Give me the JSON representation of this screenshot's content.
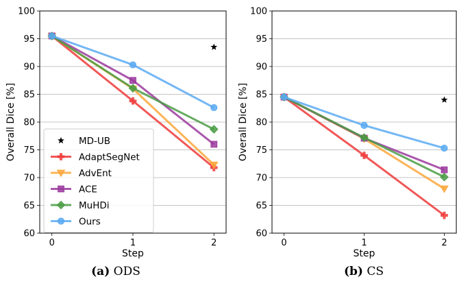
{
  "colors": {
    "AdaptSegNet": "#ee3a3a",
    "AdvEnt": "#fca73b",
    "ACE": "#9b3a9e",
    "MuHDi": "#4a9c44",
    "Ours": "#5aaaf2",
    "MD-UB": "#000000"
  },
  "chart_data": [
    {
      "type": "line",
      "caption_tag": "(a)",
      "caption_text": "ODS",
      "xlabel": "Step",
      "ylabel": "Overall Dice [%]",
      "x": [
        0,
        1,
        2
      ],
      "xticks": [
        "0",
        "1",
        "2"
      ],
      "ylim": [
        60,
        100
      ],
      "yticks": [
        "60",
        "65",
        "70",
        "75",
        "80",
        "85",
        "90",
        "95",
        "100"
      ],
      "grid": "horizontal",
      "legend": "bottom-left",
      "upper_bound": {
        "name": "MD-UB",
        "x": 2,
        "y": 93.5
      },
      "series": [
        {
          "name": "AdaptSegNet",
          "marker": "plus",
          "values": [
            95.5,
            83.8,
            71.8
          ]
        },
        {
          "name": "AdvEnt",
          "marker": "triangle-down",
          "values": [
            95.5,
            86.0,
            72.3
          ]
        },
        {
          "name": "ACE",
          "marker": "square",
          "values": [
            95.5,
            87.5,
            76.0
          ]
        },
        {
          "name": "MuHDi",
          "marker": "diamond",
          "values": [
            95.5,
            86.1,
            78.7
          ]
        },
        {
          "name": "Ours",
          "marker": "circle",
          "values": [
            95.5,
            90.3,
            82.6
          ]
        }
      ]
    },
    {
      "type": "line",
      "caption_tag": "(b)",
      "caption_text": "CS",
      "xlabel": "Step",
      "ylabel": "Overall Dice [%]",
      "x": [
        0,
        1,
        2
      ],
      "xticks": [
        "0",
        "1",
        "2"
      ],
      "ylim": [
        60,
        100
      ],
      "yticks": [
        "60",
        "65",
        "70",
        "75",
        "80",
        "85",
        "90",
        "95",
        "100"
      ],
      "grid": "horizontal",
      "legend": "none",
      "upper_bound": {
        "name": "MD-UB",
        "x": 2,
        "y": 84.0
      },
      "series": [
        {
          "name": "AdaptSegNet",
          "marker": "plus",
          "values": [
            84.5,
            74.0,
            63.2
          ]
        },
        {
          "name": "AdvEnt",
          "marker": "triangle-down",
          "values": [
            84.5,
            77.0,
            68.0
          ]
        },
        {
          "name": "ACE",
          "marker": "square",
          "values": [
            84.5,
            77.1,
            71.4
          ]
        },
        {
          "name": "MuHDi",
          "marker": "diamond",
          "values": [
            84.5,
            77.2,
            70.1
          ]
        },
        {
          "name": "Ours",
          "marker": "circle",
          "values": [
            84.5,
            79.4,
            75.3
          ]
        }
      ]
    }
  ]
}
